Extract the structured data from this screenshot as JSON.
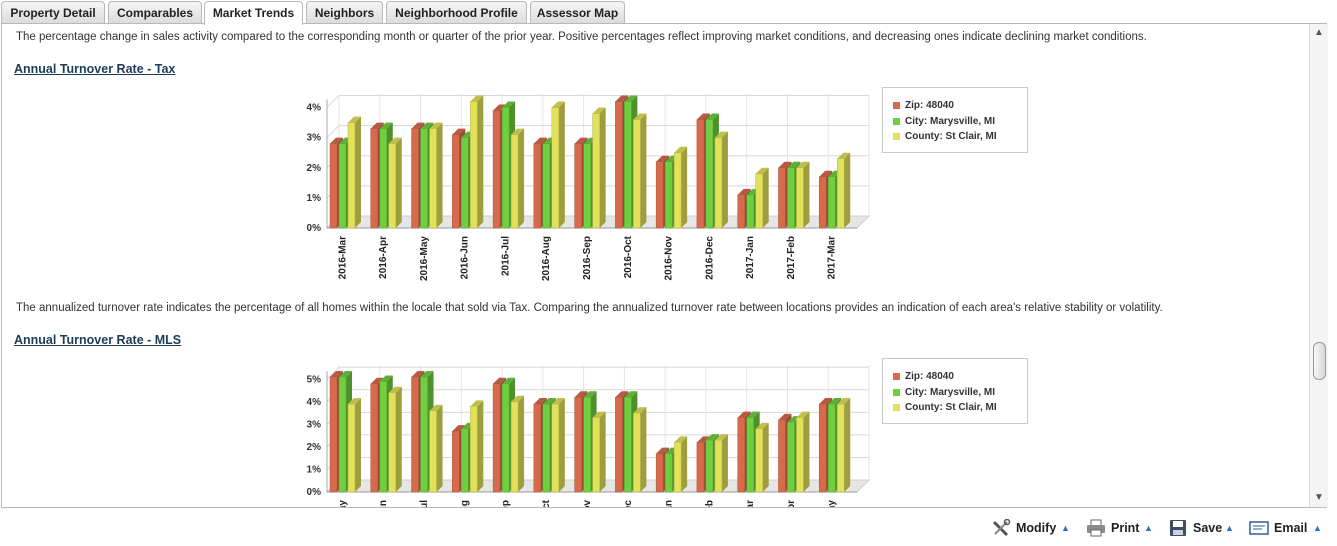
{
  "tabs": [
    {
      "label": "Property Detail",
      "active": false
    },
    {
      "label": "Comparables",
      "active": false
    },
    {
      "label": "Market Trends",
      "active": true
    },
    {
      "label": "Neighbors",
      "active": false
    },
    {
      "label": "Neighborhood Profile",
      "active": false
    },
    {
      "label": "Assessor Map",
      "active": false
    }
  ],
  "intro_text": "The percentage change in sales activity compared to the corresponding month or quarter of the prior year. Positive percentages reflect improving market conditions, and decreasing ones indicate declining market conditions.",
  "section_tax": {
    "heading": "Annual Turnover Rate - Tax",
    "description": "The annualized turnover rate indicates the percentage of all homes within the locale that sold via Tax. Comparing the annualized turnover rate between locations provides an indication of each area's relative stability or volatility."
  },
  "section_mls": {
    "heading": "Annual Turnover Rate - MLS"
  },
  "legend": [
    {
      "label": "Zip: 48040",
      "color": "#d86a4c"
    },
    {
      "label": "City: Marysville, MI",
      "color": "#6fcf3f"
    },
    {
      "label": "County: St Clair, MI",
      "color": "#e2e15a"
    }
  ],
  "footer": {
    "modify": "Modify",
    "print": "Print",
    "save": "Save",
    "email": "Email"
  },
  "chart_data": [
    {
      "type": "bar",
      "title": "Annual Turnover Rate - Tax",
      "categories": [
        "2016-Mar",
        "2016-Apr",
        "2016-May",
        "2016-Jun",
        "2016-Jul",
        "2016-Aug",
        "2016-Sep",
        "2016-Oct",
        "2016-Nov",
        "2016-Dec",
        "2017-Jan",
        "2017-Feb",
        "2017-Mar"
      ],
      "ylim": [
        0,
        4
      ],
      "yticks": [
        "0%",
        "1%",
        "2%",
        "3%",
        "4%"
      ],
      "series": [
        {
          "name": "Zip: 48040",
          "values": [
            2.8,
            3.3,
            3.3,
            3.1,
            3.9,
            2.8,
            2.8,
            4.2,
            2.2,
            3.6,
            1.1,
            2.0,
            1.7
          ]
        },
        {
          "name": "City: Marysville, MI",
          "values": [
            2.8,
            3.3,
            3.3,
            3.0,
            4.0,
            2.8,
            2.8,
            4.2,
            2.2,
            3.6,
            1.1,
            2.0,
            1.7
          ]
        },
        {
          "name": "County: St Clair, MI",
          "values": [
            3.5,
            2.8,
            3.3,
            4.2,
            3.1,
            4.0,
            3.8,
            3.6,
            2.5,
            3.0,
            1.8,
            2.0,
            2.3
          ]
        }
      ],
      "grid": true,
      "legend": "right"
    },
    {
      "type": "bar",
      "title": "Annual Turnover Rate - MLS",
      "categories": [
        "May",
        "Jun",
        "Jul",
        "Aug",
        "Sep",
        "Oct",
        "Nov",
        "Dec",
        "Jan",
        "Feb",
        "Mar",
        "Apr",
        "May"
      ],
      "visible_tick_labels": [
        "lay",
        "un",
        "Jul",
        "ug",
        "ep",
        "Oct",
        "lov",
        "ec",
        "an",
        "eb",
        "lar",
        "pr",
        "lay"
      ],
      "ylim": [
        0,
        5
      ],
      "yticks": [
        "0%",
        "1%",
        "2%",
        "3%",
        "4%",
        "5%"
      ],
      "series": [
        {
          "name": "Zip: 48040",
          "values": [
            5.1,
            4.8,
            5.1,
            2.7,
            4.8,
            3.9,
            4.2,
            4.2,
            1.7,
            2.2,
            3.3,
            3.2,
            3.9
          ]
        },
        {
          "name": "City: Marysville, MI",
          "values": [
            5.1,
            4.9,
            5.1,
            2.8,
            4.8,
            3.9,
            4.2,
            4.2,
            1.7,
            2.3,
            3.3,
            3.1,
            3.9
          ]
        },
        {
          "name": "County: St Clair, MI",
          "values": [
            3.9,
            4.4,
            3.6,
            3.8,
            4.0,
            3.9,
            3.3,
            3.5,
            2.2,
            2.3,
            2.8,
            3.3,
            3.9
          ]
        }
      ],
      "grid": true,
      "legend": "right"
    }
  ]
}
